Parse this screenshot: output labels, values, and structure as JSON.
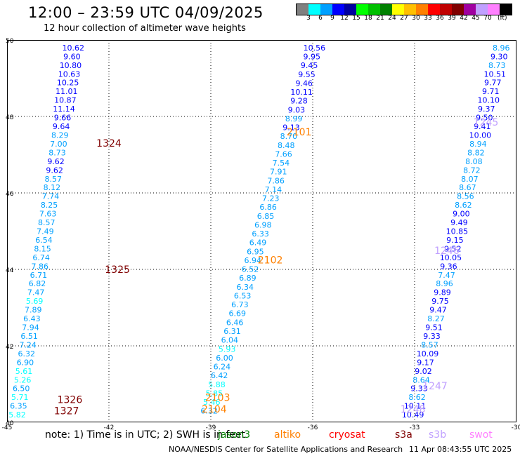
{
  "header": {
    "title": "12:00 – 23:59 UTC 04/09/2025",
    "subtitle": "12 hour collection of altimeter wave heights"
  },
  "colorbar": {
    "colors": [
      "#808080",
      "#00ffff",
      "#00a0ff",
      "#0000ff",
      "#0000a0",
      "#00ff00",
      "#00c000",
      "#008000",
      "#ffff00",
      "#ffc000",
      "#ff8000",
      "#ff0000",
      "#c00000",
      "#800000",
      "#a000a0",
      "#c0a0ff",
      "#ff80ff",
      "#000000"
    ],
    "labels": [
      "3",
      "6",
      "9",
      "12",
      "15",
      "18",
      "21",
      "24",
      "27",
      "30",
      "33",
      "36",
      "39",
      "42",
      "45",
      "70"
    ],
    "unit": "(ft)"
  },
  "chart_data": {
    "type": "scatter",
    "xlim": [
      -45,
      -30
    ],
    "ylim": [
      40,
      50
    ],
    "x_ticks": [
      "-45",
      "-42",
      "-39",
      "-36",
      "-33",
      "-30"
    ],
    "y_ticks": [
      "40",
      "42",
      "44",
      "46",
      "48",
      "50"
    ],
    "grid": true,
    "tracks": [
      {
        "start": [
          -43.05,
          49.8
        ],
        "end": [
          -44.7,
          40.2
        ],
        "values": [
          "10.62",
          "9.60",
          "10.80",
          "10.63",
          "10.25",
          "11.01",
          "10.87",
          "11.14",
          "9.66",
          "9.64",
          "8.29",
          "7.00",
          "8.73",
          "9.62",
          "9.62",
          "8.57",
          "8.12",
          "7.74",
          "8.25",
          "7.63",
          "8.57",
          "7.49",
          "6.54",
          "8.15",
          "6.74",
          "7.86",
          "6.71",
          "6.82",
          "7.47",
          "5.69",
          "7.89",
          "6.43",
          "7.94",
          "6.51",
          "7.24",
          "6.32",
          "6.90",
          "5.61",
          "5.26",
          "6.50",
          "5.71",
          "6.35",
          "5.82"
        ]
      },
      {
        "start": [
          -35.95,
          49.8
        ],
        "end": [
          -39.05,
          40.3
        ],
        "values": [
          "10.56",
          "9.95",
          "9.45",
          "9.55",
          "9.46",
          "10.11",
          "9.28",
          "9.03",
          "8.99",
          "9.13",
          "8.70",
          "8.48",
          "7.66",
          "7.54",
          "7.91",
          "7.86",
          "7.14",
          "7.23",
          "6.86",
          "6.85",
          "6.98",
          "6.33",
          "6.49",
          "6.95",
          "6.94",
          "6.52",
          "6.89",
          "6.34",
          "6.53",
          "6.73",
          "6.69",
          "6.46",
          "6.31",
          "6.04",
          "5.93",
          "6.00",
          "6.24",
          "6.42",
          "5.88",
          "5.85",
          "5.46",
          "6.32"
        ]
      },
      {
        "start": [
          -30.45,
          49.8
        ],
        "end": [
          -33.05,
          40.2
        ],
        "values": [
          "8.96",
          "9.30",
          "8.73",
          "10.51",
          "9.77",
          "9.71",
          "10.10",
          "9.37",
          "9.50",
          "9.41",
          "10.00",
          "8.94",
          "8.82",
          "8.08",
          "8.72",
          "8.07",
          "8.67",
          "8.56",
          "8.62",
          "9.00",
          "9.49",
          "10.85",
          "9.15",
          "9.52",
          "10.05",
          "9.36",
          "7.47",
          "8.96",
          "9.89",
          "9.75",
          "9.47",
          "8.27",
          "9.51",
          "9.33",
          "8.57",
          "10.09",
          "9.17",
          "9.02",
          "8.64",
          "9.33",
          "8.62",
          "10.11",
          "10.49"
        ]
      }
    ],
    "pass_labels": [
      {
        "text": "1324",
        "x": -42.0,
        "y": 47.3,
        "color": "#800000"
      },
      {
        "text": "1325",
        "x": -41.75,
        "y": 44.0,
        "color": "#800000"
      },
      {
        "text": "1326",
        "x": -43.15,
        "y": 40.6,
        "color": "#800000"
      },
      {
        "text": "1327",
        "x": -43.25,
        "y": 40.3,
        "color": "#800000"
      },
      {
        "text": "2101",
        "x": -36.4,
        "y": 47.6,
        "color": "#ff8000"
      },
      {
        "text": "2102",
        "x": -37.25,
        "y": 44.25,
        "color": "#ff8000"
      },
      {
        "text": "2103",
        "x": -38.8,
        "y": 40.65,
        "color": "#ff8000"
      },
      {
        "text": "2104",
        "x": -38.9,
        "y": 40.35,
        "color": "#ff8000"
      },
      {
        "text": "1245",
        "x": -30.9,
        "y": 47.85,
        "color": "#c0a0ff"
      },
      {
        "text": "1246",
        "x": -32.05,
        "y": 44.5,
        "color": "#c0a0ff"
      },
      {
        "text": "1247",
        "x": -32.4,
        "y": 40.95,
        "color": "#c0a0ff"
      },
      {
        "text": "1248",
        "x": -33.05,
        "y": 40.35,
        "color": "#c0a0ff"
      }
    ]
  },
  "notes": {
    "text": "note:  1) Time is in UTC;  2) SWH is in feet"
  },
  "legend": [
    {
      "label": "jason3",
      "color": "#008000"
    },
    {
      "label": "altiko",
      "color": "#ff8000"
    },
    {
      "label": "cryosat",
      "color": "#ff0000"
    },
    {
      "label": "s3a",
      "color": "#800000"
    },
    {
      "label": "s3b",
      "color": "#c0a0ff"
    },
    {
      "label": "swot",
      "color": "#ff80ff"
    }
  ],
  "footer": {
    "credit": "NOAA/NESDIS Center for Satellite Applications and Research",
    "timestamp": "11 Apr 08:43:55 UTC 2025"
  }
}
